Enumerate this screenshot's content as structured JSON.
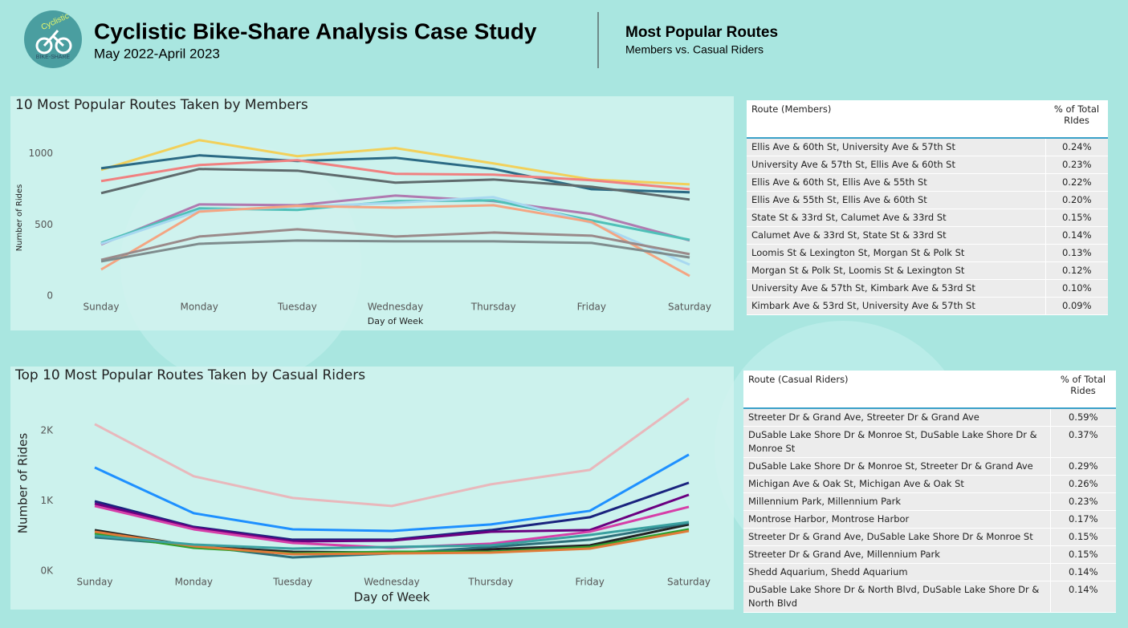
{
  "header": {
    "logo": {
      "name": "Cyclistic",
      "tagline": "BIKE-SHARE"
    },
    "title": "Cyclistic Bike-Share Analysis Case Study",
    "subtitle": "May 2022-April 2023",
    "section_title": "Most Popular Routes",
    "section_subtitle": "Members vs. Casual Riders"
  },
  "chart_data": [
    {
      "type": "line",
      "title": "10 Most Popular Routes Taken by Members",
      "x_label": "Day of Week",
      "y_label": "Number of Rides",
      "categories": [
        "Sunday",
        "Monday",
        "Tuesday",
        "Wednesday",
        "Thursday",
        "Friday",
        "Saturday"
      ],
      "ylim": [
        0,
        1100
      ],
      "yticks": [
        0,
        500,
        1000
      ],
      "series": [
        {
          "color": "#f2d05a",
          "values": [
            887,
            1096,
            983,
            1040,
            932,
            819,
            785
          ]
        },
        {
          "color": "#2b6a84",
          "values": [
            898,
            989,
            949,
            972,
            893,
            751,
            729
          ]
        },
        {
          "color": "#f08080",
          "values": [
            808,
            921,
            955,
            859,
            853,
            814,
            751
          ]
        },
        {
          "color": "#5f6b6d",
          "values": [
            723,
            893,
            881,
            797,
            819,
            768,
            678
          ]
        },
        {
          "color": "#b07ab0",
          "values": [
            362,
            644,
            638,
            706,
            667,
            576,
            390
          ]
        },
        {
          "color": "#4fc0b8",
          "values": [
            373,
            616,
            605,
            667,
            672,
            531,
            395
          ]
        },
        {
          "color": "#a8d8f0",
          "values": [
            367,
            599,
            627,
            655,
            695,
            514,
            220
          ]
        },
        {
          "color": "#f4a582",
          "values": [
            186,
            593,
            633,
            621,
            638,
            520,
            141
          ]
        },
        {
          "color": "#9a8a8a",
          "values": [
            254,
            418,
            469,
            418,
            446,
            424,
            294
          ]
        },
        {
          "color": "#7f8c8d",
          "values": [
            243,
            367,
            390,
            384,
            384,
            373,
            271
          ]
        }
      ]
    },
    {
      "type": "line",
      "title": "Top 10 Most Popular Routes Taken by Casual Riders",
      "x_label": "Day of Week",
      "y_label": "Number of Rides",
      "categories": [
        "Sunday",
        "Monday",
        "Tuesday",
        "Wednesday",
        "Thursday",
        "Friday",
        "Saturday"
      ],
      "ylim": [
        0,
        2500
      ],
      "yticks": [
        {
          "value": 0,
          "label": "0K"
        },
        {
          "value": 1000,
          "label": "1K"
        },
        {
          "value": 2000,
          "label": "2K"
        }
      ],
      "series": [
        {
          "color": "#e8b8bc",
          "values": [
            2091,
            1349,
            1040,
            926,
            1234,
            1440,
            2457
          ]
        },
        {
          "color": "#1e90ff",
          "values": [
            1474,
            823,
            594,
            571,
            663,
            857,
            1657
          ]
        },
        {
          "color": "#1a237e",
          "values": [
            994,
            629,
            446,
            446,
            583,
            766,
            1257
          ]
        },
        {
          "color": "#6a0080",
          "values": [
            960,
            617,
            423,
            434,
            560,
            583,
            1086
          ]
        },
        {
          "color": "#d63fa8",
          "values": [
            926,
            594,
            400,
            331,
            389,
            560,
            914
          ]
        },
        {
          "color": "#222222",
          "values": [
            583,
            354,
            274,
            263,
            309,
            366,
            663
          ]
        },
        {
          "color": "#2e6f7a",
          "values": [
            480,
            366,
            194,
            251,
            343,
            446,
            686
          ]
        },
        {
          "color": "#2ca02c",
          "values": [
            537,
            331,
            251,
            274,
            274,
            343,
            594
          ]
        },
        {
          "color": "#e07b39",
          "values": [
            560,
            354,
            240,
            251,
            263,
            320,
            571
          ]
        },
        {
          "color": "#3aa0a0",
          "values": [
            503,
            377,
            320,
            343,
            366,
            514,
            697
          ]
        }
      ]
    }
  ],
  "tables": [
    {
      "header": [
        "Route (Members)",
        "% of Total RIdes"
      ],
      "rows": [
        [
          "Ellis Ave & 60th St, University Ave & 57th St",
          "0.24%"
        ],
        [
          "University Ave & 57th St, Ellis Ave & 60th St",
          "0.23%"
        ],
        [
          "Ellis Ave & 60th St, Ellis Ave & 55th St",
          "0.22%"
        ],
        [
          "Ellis Ave & 55th St, Ellis Ave & 60th St",
          "0.20%"
        ],
        [
          "State St & 33rd St, Calumet Ave & 33rd St",
          "0.15%"
        ],
        [
          "Calumet Ave & 33rd St, State St & 33rd St",
          "0.14%"
        ],
        [
          "Loomis St & Lexington St, Morgan St & Polk St",
          "0.13%"
        ],
        [
          "Morgan St & Polk St, Loomis St & Lexington St",
          "0.12%"
        ],
        [
          "University Ave & 57th St, Kimbark Ave & 53rd St",
          "0.10%"
        ],
        [
          "Kimbark Ave & 53rd St, University Ave & 57th St",
          "0.09%"
        ]
      ]
    },
    {
      "header": [
        "Route (Casual Riders)",
        "% of Total Rides"
      ],
      "rows": [
        [
          "Streeter Dr & Grand Ave, Streeter Dr & Grand Ave",
          "0.59%"
        ],
        [
          "DuSable Lake Shore Dr & Monroe St, DuSable Lake Shore Dr & Monroe St",
          "0.37%"
        ],
        [
          "DuSable Lake Shore Dr & Monroe St, Streeter Dr & Grand Ave",
          "0.29%"
        ],
        [
          "Michigan Ave & Oak St, Michigan Ave & Oak St",
          "0.26%"
        ],
        [
          "Millennium Park, Millennium Park",
          "0.23%"
        ],
        [
          "Montrose Harbor, Montrose Harbor",
          "0.17%"
        ],
        [
          "Streeter Dr & Grand Ave, DuSable Lake Shore Dr & Monroe St",
          "0.15%"
        ],
        [
          "Streeter Dr & Grand Ave, Millennium Park",
          "0.15%"
        ],
        [
          "Shedd Aquarium, Shedd Aquarium",
          "0.14%"
        ],
        [
          "DuSable Lake Shore Dr & North Blvd, DuSable Lake Shore Dr & North Blvd",
          "0.14%"
        ]
      ]
    }
  ]
}
